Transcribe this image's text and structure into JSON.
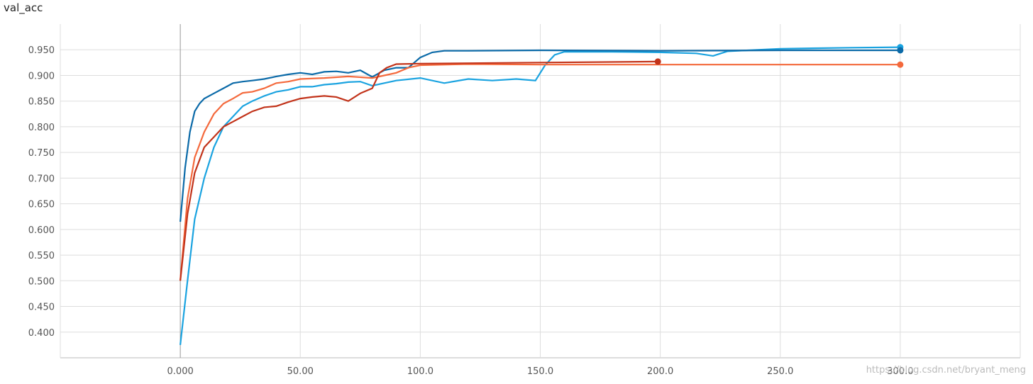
{
  "chart_data": {
    "type": "line",
    "title": "val_acc",
    "watermark": "https://blog.csdn.net/bryant_meng",
    "xlim": [
      -50,
      350
    ],
    "ylim": [
      0.35,
      1.0
    ],
    "grid": true,
    "xticks": [
      {
        "value": 0,
        "label": "0.000"
      },
      {
        "value": 50,
        "label": "50.00"
      },
      {
        "value": 100,
        "label": "100.0"
      },
      {
        "value": 150,
        "label": "150.0"
      },
      {
        "value": 200,
        "label": "200.0"
      },
      {
        "value": 250,
        "label": "250.0"
      },
      {
        "value": 300,
        "label": "300.0"
      }
    ],
    "yticks": [
      {
        "value": 0.4,
        "label": "0.400"
      },
      {
        "value": 0.45,
        "label": "0.450"
      },
      {
        "value": 0.5,
        "label": "0.500"
      },
      {
        "value": 0.55,
        "label": "0.550"
      },
      {
        "value": 0.6,
        "label": "0.600"
      },
      {
        "value": 0.65,
        "label": "0.650"
      },
      {
        "value": 0.7,
        "label": "0.700"
      },
      {
        "value": 0.75,
        "label": "0.750"
      },
      {
        "value": 0.8,
        "label": "0.800"
      },
      {
        "value": 0.85,
        "label": "0.850"
      },
      {
        "value": 0.9,
        "label": "0.900"
      },
      {
        "value": 0.95,
        "label": "0.950"
      }
    ],
    "series": [
      {
        "color": "#1aa3e0",
        "x": [
          0,
          3,
          6,
          10,
          14,
          18,
          22,
          26,
          30,
          35,
          40,
          45,
          50,
          55,
          60,
          65,
          70,
          75,
          80,
          85,
          90,
          100,
          110,
          120,
          130,
          140,
          148,
          152,
          156,
          160,
          180,
          200,
          215,
          222,
          228,
          250,
          280,
          300
        ],
        "values": [
          0.375,
          0.5,
          0.62,
          0.7,
          0.76,
          0.8,
          0.82,
          0.84,
          0.85,
          0.86,
          0.868,
          0.872,
          0.878,
          0.878,
          0.882,
          0.884,
          0.887,
          0.888,
          0.88,
          0.885,
          0.89,
          0.895,
          0.885,
          0.893,
          0.89,
          0.893,
          0.89,
          0.92,
          0.94,
          0.946,
          0.946,
          0.945,
          0.943,
          0.938,
          0.947,
          0.952,
          0.954,
          0.955
        ]
      },
      {
        "color": "#0b6aa8",
        "x": [
          0,
          2,
          4,
          6,
          8,
          10,
          14,
          18,
          22,
          26,
          30,
          35,
          40,
          45,
          50,
          55,
          60,
          65,
          70,
          75,
          80,
          85,
          90,
          95,
          100,
          105,
          110,
          120,
          150,
          200,
          250,
          300
        ],
        "values": [
          0.615,
          0.72,
          0.79,
          0.83,
          0.845,
          0.855,
          0.865,
          0.875,
          0.885,
          0.888,
          0.89,
          0.893,
          0.898,
          0.902,
          0.905,
          0.902,
          0.907,
          0.908,
          0.905,
          0.91,
          0.897,
          0.91,
          0.915,
          0.915,
          0.935,
          0.945,
          0.948,
          0.948,
          0.949,
          0.948,
          0.949,
          0.949
        ]
      },
      {
        "color": "#f4693c",
        "x": [
          0,
          3,
          6,
          10,
          14,
          18,
          22,
          26,
          30,
          35,
          40,
          45,
          50,
          60,
          70,
          80,
          85,
          90,
          95,
          100,
          120,
          150,
          200,
          250,
          300
        ],
        "values": [
          0.5,
          0.66,
          0.74,
          0.79,
          0.825,
          0.845,
          0.855,
          0.866,
          0.868,
          0.875,
          0.885,
          0.888,
          0.893,
          0.895,
          0.898,
          0.895,
          0.9,
          0.905,
          0.915,
          0.92,
          0.922,
          0.921,
          0.921,
          0.921,
          0.921
        ]
      },
      {
        "color": "#c2331a",
        "x": [
          0,
          3,
          6,
          10,
          14,
          18,
          22,
          26,
          30,
          35,
          40,
          45,
          50,
          55,
          60,
          65,
          70,
          75,
          80,
          83,
          86,
          90,
          100,
          150,
          199
        ],
        "values": [
          0.5,
          0.63,
          0.71,
          0.76,
          0.78,
          0.8,
          0.81,
          0.82,
          0.83,
          0.838,
          0.84,
          0.848,
          0.855,
          0.858,
          0.86,
          0.858,
          0.85,
          0.865,
          0.875,
          0.905,
          0.915,
          0.922,
          0.923,
          0.925,
          0.927
        ]
      }
    ]
  }
}
